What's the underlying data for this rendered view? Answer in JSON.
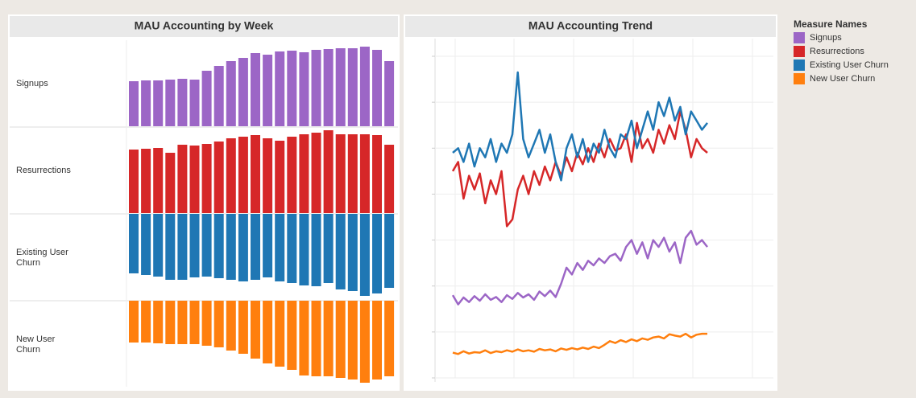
{
  "chart_data": [
    {
      "type": "bar",
      "title": "MAU Accounting by Week",
      "categories": [
        null,
        null,
        null,
        null,
        null,
        null,
        null,
        null,
        null,
        null,
        null,
        null,
        null,
        null,
        null,
        null,
        null,
        null,
        null,
        null,
        null,
        null
      ],
      "series": [
        {
          "name": "Signups",
          "color": "#9c66c6",
          "ylim": [
            0,
            107
          ],
          "values": [
            56,
            57,
            57,
            58,
            59,
            58,
            69,
            75,
            81,
            85,
            91,
            89,
            93,
            94,
            92,
            95,
            96,
            97,
            97,
            99,
            95,
            81
          ]
        },
        {
          "name": "Resurrections",
          "color": "#d62728",
          "ylim": [
            0,
            107
          ],
          "values": [
            79,
            80,
            81,
            75,
            85,
            84,
            86,
            89,
            93,
            95,
            97,
            93,
            90,
            95,
            98,
            100,
            103,
            98,
            98,
            98,
            97,
            85
          ]
        },
        {
          "name": "Existing User Churn",
          "color": "#1f77b4",
          "ylim": [
            -107,
            0
          ],
          "values": [
            -74,
            -76,
            -78,
            -82,
            -82,
            -79,
            -78,
            -80,
            -82,
            -84,
            -82,
            -79,
            -84,
            -86,
            -89,
            -90,
            -86,
            -94,
            -96,
            -102,
            -99,
            -92
          ]
        },
        {
          "name": "New User Churn",
          "color": "#ff7f0e",
          "ylim": [
            -107,
            0
          ],
          "values": [
            -52,
            -52,
            -53,
            -54,
            -54,
            -54,
            -56,
            -58,
            -62,
            -66,
            -72,
            -78,
            -82,
            -86,
            -93,
            -94,
            -94,
            -96,
            -98,
            -102,
            -98,
            -94
          ]
        }
      ]
    },
    {
      "type": "line",
      "title": "MAU Accounting Trend",
      "legend_title": "Measure Names",
      "categories": [
        null,
        null,
        null,
        null,
        null,
        null,
        null,
        null,
        null,
        null,
        null,
        null,
        null,
        null,
        null,
        null,
        null,
        null,
        null,
        null,
        null,
        null,
        null,
        null,
        null,
        null,
        null,
        null,
        null,
        null,
        null,
        null,
        null,
        null,
        null,
        null,
        null,
        null,
        null,
        null,
        null,
        null,
        null,
        null,
        null,
        null,
        null,
        null
      ],
      "ylim": [
        0,
        700
      ],
      "yticks": [
        0,
        100,
        200,
        300,
        400,
        500,
        600,
        700
      ],
      "grid": true,
      "series": [
        {
          "name": "Signups",
          "color": "#9c66c6",
          "values": [
            180,
            160,
            175,
            165,
            178,
            168,
            182,
            170,
            176,
            165,
            180,
            172,
            185,
            175,
            182,
            170,
            188,
            178,
            190,
            176,
            205,
            240,
            225,
            250,
            235,
            255,
            245,
            260,
            250,
            265,
            270,
            255,
            285,
            300,
            270,
            295,
            260,
            300,
            285,
            305,
            275,
            295,
            250,
            305,
            320,
            290,
            300,
            285
          ]
        },
        {
          "name": "Resurrections",
          "color": "#d62728",
          "values": [
            450,
            470,
            390,
            440,
            410,
            445,
            380,
            430,
            400,
            450,
            330,
            345,
            410,
            440,
            400,
            450,
            420,
            460,
            430,
            470,
            440,
            480,
            450,
            490,
            465,
            500,
            470,
            510,
            480,
            520,
            495,
            500,
            530,
            470,
            555,
            500,
            520,
            490,
            540,
            510,
            550,
            520,
            580,
            540,
            480,
            520,
            500,
            490
          ]
        },
        {
          "name": "Existing User Churn",
          "color": "#1f77b4",
          "values": [
            490,
            500,
            470,
            510,
            460,
            500,
            480,
            520,
            470,
            510,
            490,
            530,
            665,
            520,
            480,
            510,
            540,
            490,
            530,
            470,
            430,
            500,
            530,
            480,
            520,
            470,
            510,
            490,
            540,
            500,
            480,
            530,
            520,
            560,
            500,
            540,
            580,
            540,
            600,
            570,
            610,
            560,
            590,
            530,
            580,
            560,
            540,
            555
          ]
        },
        {
          "name": "New User Churn",
          "color": "#ff7f0e",
          "values": [
            55,
            52,
            58,
            53,
            56,
            55,
            60,
            54,
            58,
            56,
            60,
            57,
            62,
            58,
            60,
            57,
            63,
            60,
            62,
            58,
            64,
            61,
            65,
            62,
            66,
            63,
            68,
            65,
            72,
            80,
            76,
            82,
            78,
            84,
            80,
            86,
            83,
            88,
            90,
            86,
            95,
            92,
            90,
            96,
            88,
            94,
            96,
            96
          ]
        }
      ]
    }
  ]
}
